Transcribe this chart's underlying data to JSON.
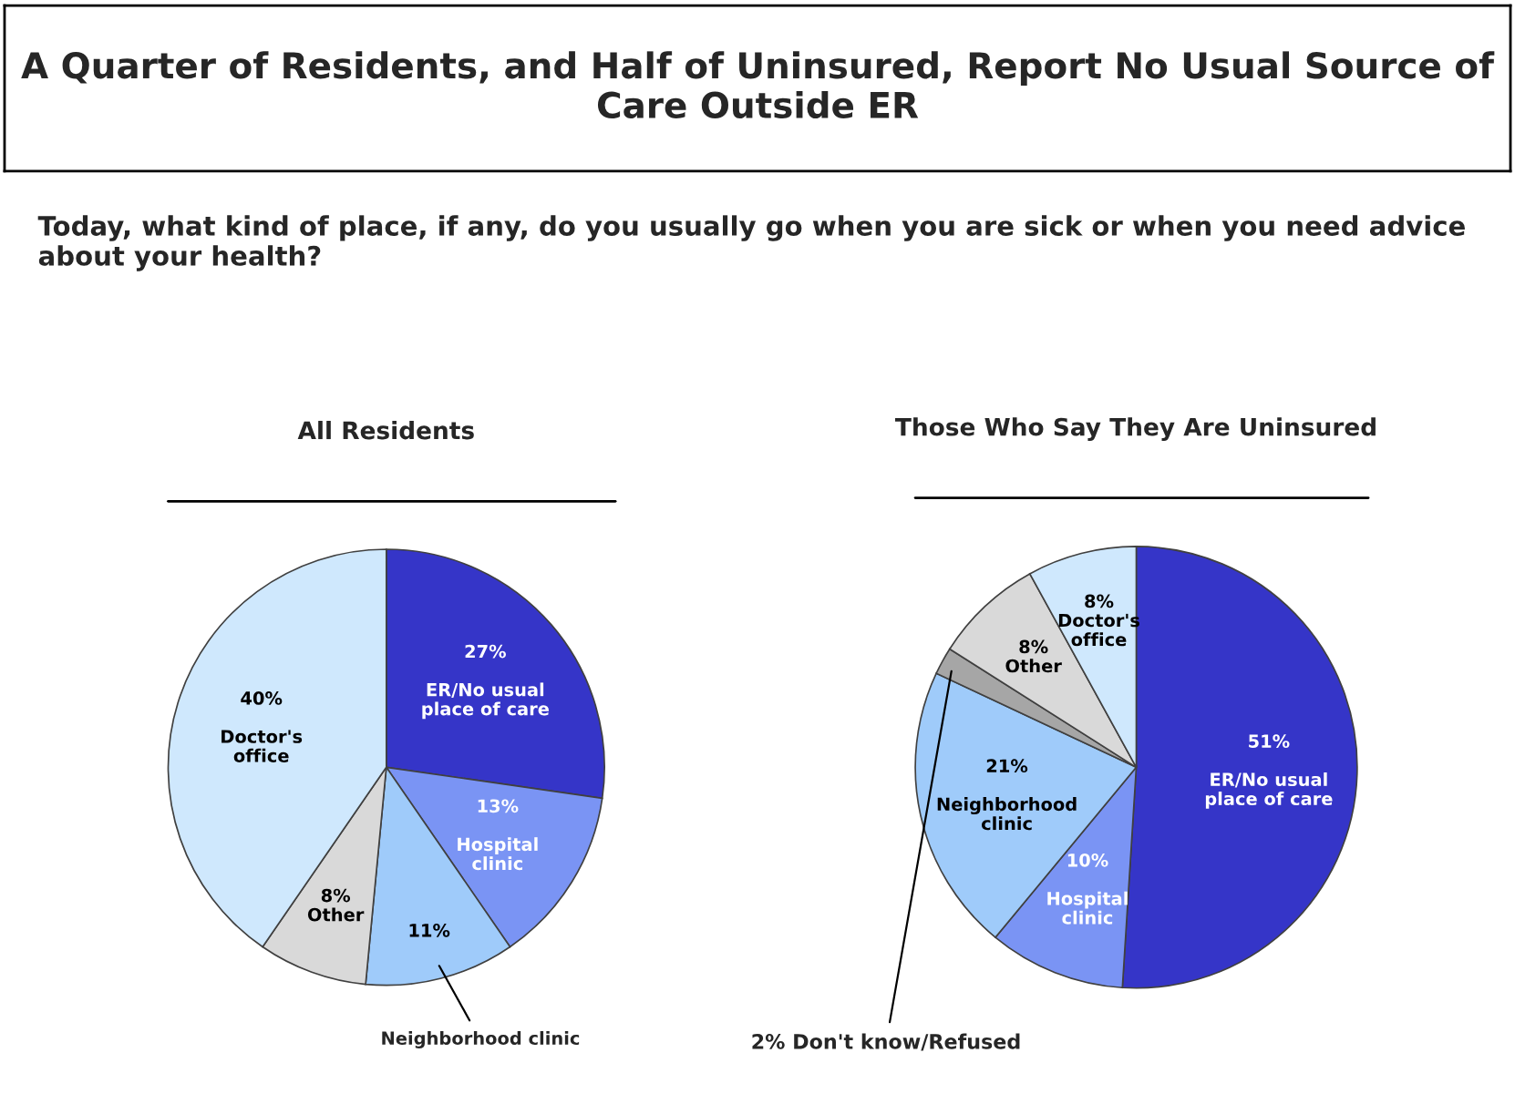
{
  "chart_data": [
    {
      "type": "other",
      "title": "A Quarter of Residents, and Half of Uninsured, Report No Usual Source of Care Outside ER",
      "subtitle": "Today, what kind of place, if any, do you usually go when you are sick or when you need advice about your health?"
    },
    {
      "type": "pie",
      "title": "All Residents",
      "categories": [
        "ER/No usual place of care",
        "Hospital clinic",
        "Neighborhood clinic",
        "Other",
        "Doctor's office"
      ],
      "values": [
        27,
        13,
        11,
        8,
        40
      ],
      "colors": [
        "#3535c8",
        "#7a94f4",
        "#9fcbfa",
        "#d9d9d9",
        "#cfe8fd"
      ],
      "value_labels": [
        "27%",
        "13%",
        "11%",
        "8%",
        "40%"
      ]
    },
    {
      "type": "pie",
      "title": "Those Who Say They Are Uninsured",
      "categories": [
        "ER/No usual place of care",
        "Hospital clinic",
        "Neighborhood clinic",
        "Don't know/Refused",
        "Other",
        "Doctor's office"
      ],
      "values": [
        51,
        10,
        21,
        2,
        8,
        8
      ],
      "colors": [
        "#3535c8",
        "#7a94f4",
        "#9fcbfa",
        "#a6a6a6",
        "#d9d9d9",
        "#cfe8fd"
      ],
      "value_labels": [
        "51%",
        "10%",
        "21%",
        "2%",
        "8%",
        "8%"
      ]
    }
  ]
}
